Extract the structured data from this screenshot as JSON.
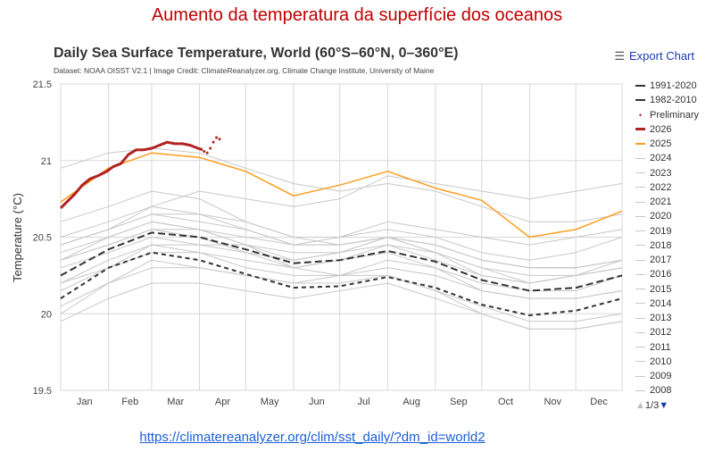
{
  "slide_title": "Aumento da temperatura da superfície dos oceanos",
  "link": "https://climatereanalyzer.org/clim/sst_daily/?dm_id=world2",
  "export_label": "Export Chart",
  "export_icon": "hamburger-menu-icon",
  "pager": {
    "label": "1/3",
    "up_icon": "triangle-up-icon",
    "down_icon": "triangle-down-icon"
  },
  "chart_data": {
    "type": "line",
    "title": "Daily Sea Surface Temperature, World (60°S–60°N, 0–360°E)",
    "subtitle": "Dataset: NOAA OISST V2.1 | Image Credit: ClimateReanalyzer.org, Climate Change Institute, University of Maine",
    "ylabel": "Temperature (°C)",
    "xlabel": "",
    "ylim": [
      19.5,
      21.5
    ],
    "yticks": [
      "21.5",
      "21",
      "20.5",
      "20",
      "19.5"
    ],
    "xticks": [
      "Jan",
      "Feb",
      "Mar",
      "Apr",
      "May",
      "Jun",
      "Jul",
      "Aug",
      "Sep",
      "Oct",
      "Nov",
      "Dec"
    ],
    "grid": true,
    "legend_position": "right",
    "month_start_days": [
      1,
      32,
      60,
      91,
      121,
      152,
      182,
      213,
      244,
      274,
      305,
      335,
      365
    ],
    "series": [
      {
        "name": "1991-2020",
        "color": "#333333",
        "style": "dash-long",
        "values": [
          20.25,
          20.42,
          20.53,
          20.5,
          20.42,
          20.33,
          20.35,
          20.41,
          20.34,
          20.22,
          20.15,
          20.17,
          20.25
        ]
      },
      {
        "name": "1982-2010",
        "color": "#333333",
        "style": "dash",
        "values": [
          20.1,
          20.3,
          20.4,
          20.35,
          20.26,
          20.17,
          20.18,
          20.24,
          20.17,
          20.06,
          19.99,
          20.02,
          20.1
        ]
      },
      {
        "name": "Preliminary",
        "color": "#b22222",
        "style": "dots",
        "days": [
          94,
          96,
          98,
          100,
          102,
          104
        ],
        "values": [
          21.06,
          21.05,
          21.08,
          21.12,
          21.15,
          21.14
        ]
      },
      {
        "name": "2026",
        "color": "#b22222",
        "style": "thick",
        "days": [
          1,
          5,
          10,
          15,
          20,
          25,
          31,
          35,
          40,
          45,
          50,
          55,
          60,
          65,
          70,
          75,
          80,
          85,
          90,
          93
        ],
        "values": [
          20.69,
          20.73,
          20.78,
          20.84,
          20.88,
          20.9,
          20.93,
          20.96,
          20.98,
          21.04,
          21.07,
          21.07,
          21.08,
          21.1,
          21.12,
          21.11,
          21.11,
          21.1,
          21.08,
          21.07
        ]
      },
      {
        "name": "2025",
        "color": "#ff9d1f",
        "style": "solid",
        "values": [
          20.73,
          20.95,
          21.05,
          21.02,
          20.93,
          20.77,
          20.84,
          20.93,
          20.82,
          20.74,
          20.5,
          20.55,
          20.67
        ]
      },
      {
        "name": "2024",
        "color": "#c8c8c8",
        "values": [
          20.95,
          21.05,
          21.08,
          21.05,
          20.95,
          20.85,
          20.8,
          20.85,
          20.8,
          20.7,
          20.6,
          20.6,
          20.65
        ]
      },
      {
        "name": "2023",
        "color": "#c8c8c8",
        "values": [
          20.45,
          20.55,
          20.7,
          20.8,
          20.75,
          20.7,
          20.75,
          20.9,
          20.85,
          20.8,
          20.75,
          20.8,
          20.85
        ]
      },
      {
        "name": "2022",
        "color": "#c8c8c8",
        "values": [
          20.4,
          20.5,
          20.6,
          20.55,
          20.45,
          20.35,
          20.4,
          20.5,
          20.4,
          20.25,
          20.2,
          20.25,
          20.3
        ]
      },
      {
        "name": "2021",
        "color": "#c8c8c8",
        "values": [
          20.35,
          20.45,
          20.55,
          20.5,
          20.4,
          20.35,
          20.4,
          20.45,
          20.4,
          20.3,
          20.2,
          20.25,
          20.3
        ]
      },
      {
        "name": "2020",
        "color": "#c8c8c8",
        "values": [
          20.5,
          20.6,
          20.7,
          20.65,
          20.55,
          20.45,
          20.45,
          20.5,
          20.45,
          20.35,
          20.3,
          20.3,
          20.35
        ]
      },
      {
        "name": "2019",
        "color": "#c8c8c8",
        "values": [
          20.45,
          20.55,
          20.65,
          20.65,
          20.6,
          20.5,
          20.5,
          20.55,
          20.5,
          20.4,
          20.35,
          20.4,
          20.5
        ]
      },
      {
        "name": "2018",
        "color": "#c8c8c8",
        "values": [
          20.3,
          20.4,
          20.5,
          20.45,
          20.4,
          20.3,
          20.35,
          20.45,
          20.35,
          20.25,
          20.2,
          20.25,
          20.35
        ]
      },
      {
        "name": "2017",
        "color": "#c8c8c8",
        "values": [
          20.45,
          20.55,
          20.65,
          20.6,
          20.55,
          20.45,
          20.45,
          20.5,
          20.4,
          20.3,
          20.25,
          20.25,
          20.3
        ]
      },
      {
        "name": "2016",
        "color": "#c8c8c8",
        "values": [
          20.6,
          20.7,
          20.8,
          20.75,
          20.6,
          20.5,
          20.45,
          20.5,
          20.45,
          20.35,
          20.3,
          20.3,
          20.35
        ]
      },
      {
        "name": "2015",
        "color": "#c8c8c8",
        "values": [
          20.35,
          20.45,
          20.55,
          20.55,
          20.5,
          20.45,
          20.5,
          20.6,
          20.55,
          20.5,
          20.45,
          20.5,
          20.55
        ]
      },
      {
        "name": "2014",
        "color": "#c8c8c8",
        "values": [
          20.2,
          20.3,
          20.45,
          20.45,
          20.45,
          20.4,
          20.4,
          20.5,
          20.45,
          20.35,
          20.3,
          20.3,
          20.35
        ]
      },
      {
        "name": "2013",
        "color": "#c8c8c8",
        "values": [
          20.2,
          20.35,
          20.45,
          20.4,
          20.3,
          20.25,
          20.25,
          20.3,
          20.25,
          20.15,
          20.1,
          20.1,
          20.15
        ]
      },
      {
        "name": "2012",
        "color": "#c8c8c8",
        "values": [
          20.15,
          20.3,
          20.4,
          20.4,
          20.35,
          20.3,
          20.35,
          20.4,
          20.3,
          20.15,
          20.1,
          20.1,
          20.15
        ]
      },
      {
        "name": "2011",
        "color": "#c8c8c8",
        "values": [
          20.05,
          20.2,
          20.35,
          20.3,
          20.25,
          20.2,
          20.2,
          20.25,
          20.15,
          20.05,
          19.95,
          19.95,
          20.0
        ]
      },
      {
        "name": "2010",
        "color": "#c8c8c8",
        "values": [
          20.35,
          20.5,
          20.6,
          20.55,
          20.45,
          20.3,
          20.25,
          20.25,
          20.15,
          20.0,
          19.9,
          19.9,
          19.95
        ]
      },
      {
        "name": "2009",
        "color": "#c8c8c8",
        "values": [
          20.0,
          20.2,
          20.3,
          20.3,
          20.25,
          20.2,
          20.25,
          20.35,
          20.3,
          20.2,
          20.15,
          20.15,
          20.25
        ]
      },
      {
        "name": "2008",
        "color": "#c8c8c8",
        "values": [
          19.95,
          20.1,
          20.2,
          20.2,
          20.15,
          20.1,
          20.15,
          20.2,
          20.1,
          20.0,
          19.9,
          19.9,
          19.95
        ]
      }
    ]
  }
}
